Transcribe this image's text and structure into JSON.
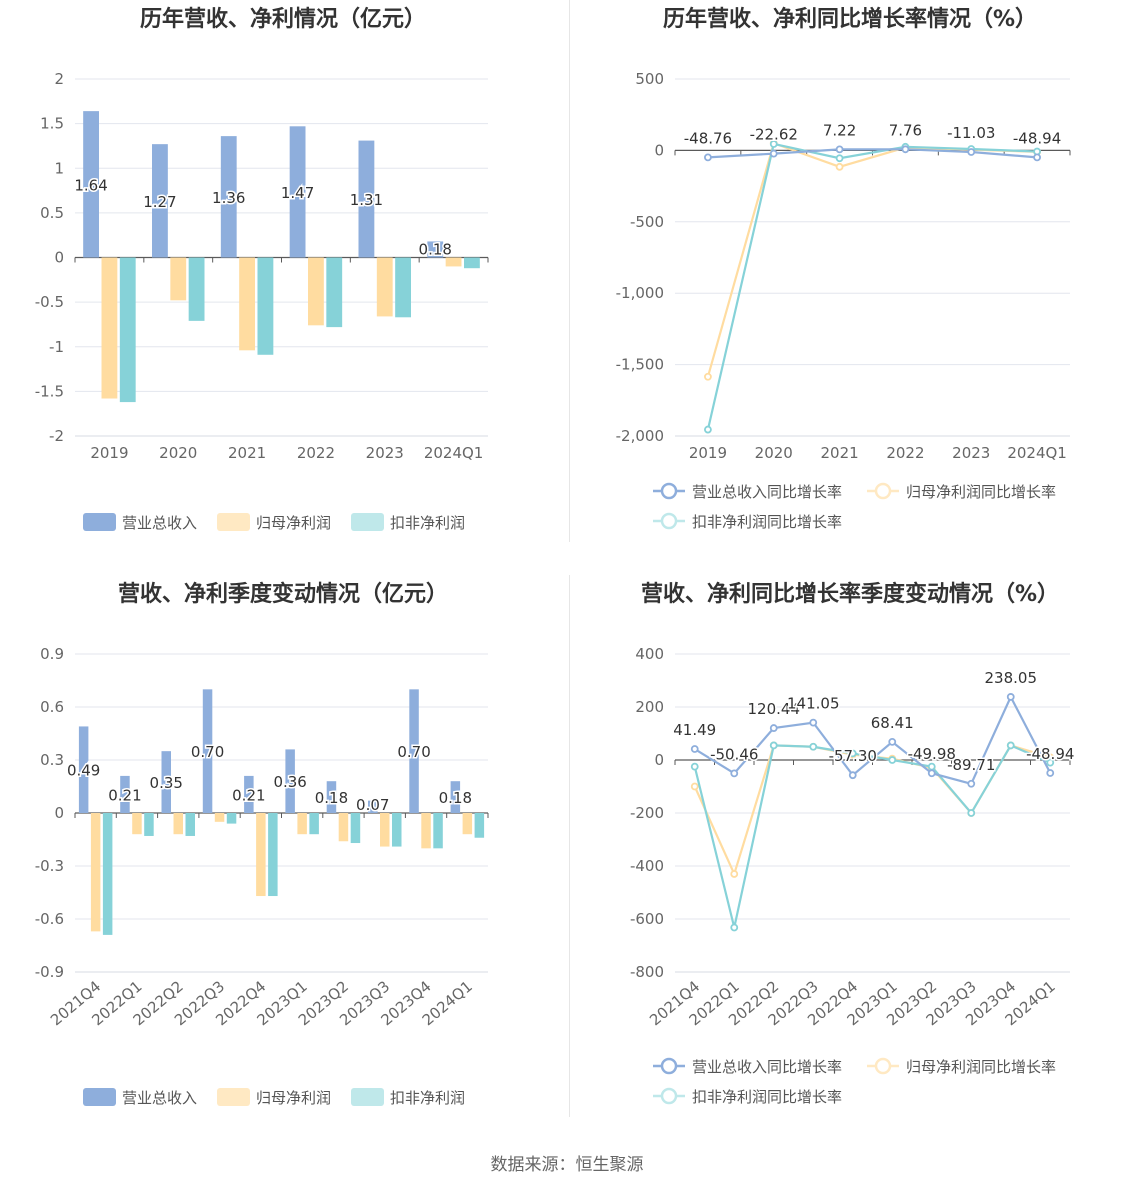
{
  "footer": "数据来源：恒生聚源",
  "colors": {
    "revenue": "#8eaedc",
    "net_profit": "#ffdca0",
    "deducted_profit": "#86d2d8",
    "grid": "#e3e6ee",
    "axis": "#5a5a5a"
  },
  "chart_data": [
    {
      "id": "p1",
      "type": "bar",
      "title": "历年营收、净利情况（亿元）",
      "categories": [
        "2019",
        "2020",
        "2021",
        "2022",
        "2023",
        "2024Q1"
      ],
      "ylim": [
        -2,
        2
      ],
      "yticks": [
        2,
        1.5,
        1,
        0.5,
        0,
        -0.5,
        -1,
        -1.5,
        -2
      ],
      "ytick_labels": [
        "2",
        "1.5",
        "1",
        "0.5",
        "0",
        "-0.5",
        "-1",
        "-1.5",
        "-2"
      ],
      "series": [
        {
          "name": "营业总收入",
          "values": [
            1.64,
            1.27,
            1.36,
            1.47,
            1.31,
            0.18
          ],
          "labels": [
            "1.64",
            "1.27",
            "1.36",
            "1.47",
            "1.31",
            "0.18"
          ]
        },
        {
          "name": "归母净利润",
          "values": [
            -1.58,
            -0.48,
            -1.04,
            -0.76,
            -0.66,
            -0.1
          ]
        },
        {
          "name": "扣非净利润",
          "values": [
            -1.62,
            -0.71,
            -1.09,
            -0.78,
            -0.67,
            -0.12
          ]
        }
      ],
      "legend": "bottom",
      "grid": true
    },
    {
      "id": "p2",
      "type": "line",
      "title": "历年营收、净利同比增长率情况（%）",
      "categories": [
        "2019",
        "2020",
        "2021",
        "2022",
        "2023",
        "2024Q1"
      ],
      "ylim": [
        -2000,
        500
      ],
      "yticks": [
        500,
        0,
        -500,
        -1000,
        -1500,
        -2000
      ],
      "ytick_labels": [
        "500",
        "0",
        "-500",
        "-1,000",
        "-1,500",
        "-2,000"
      ],
      "series": [
        {
          "name": "营业总收入同比增长率",
          "values": [
            -48.76,
            -22.62,
            7.22,
            7.76,
            -11.03,
            -48.94
          ],
          "labels": [
            "-48.76",
            "-22.62",
            "7.22",
            "7.76",
            "-11.03",
            "-48.94"
          ]
        },
        {
          "name": "归母净利润同比增长率",
          "values": [
            -1585,
            50,
            -115,
            20,
            5,
            -10
          ]
        },
        {
          "name": "扣非净利润同比增长率",
          "values": [
            -1955,
            45,
            -55,
            25,
            10,
            -8
          ]
        }
      ],
      "legend": "bottom",
      "grid": true
    },
    {
      "id": "p3",
      "type": "bar",
      "title": "营收、净利季度变动情况（亿元）",
      "categories": [
        "2021Q4",
        "2022Q1",
        "2022Q2",
        "2022Q3",
        "2022Q4",
        "2023Q1",
        "2023Q2",
        "2023Q3",
        "2023Q4",
        "2024Q1"
      ],
      "ylim": [
        -0.9,
        0.9
      ],
      "yticks": [
        0.9,
        0.6,
        0.3,
        0,
        -0.3,
        -0.6,
        -0.9
      ],
      "ytick_labels": [
        "0.9",
        "0.6",
        "0.3",
        "0",
        "-0.3",
        "-0.6",
        "-0.9"
      ],
      "series": [
        {
          "name": "营业总收入",
          "values": [
            0.49,
            0.21,
            0.35,
            0.7,
            0.21,
            0.36,
            0.18,
            0.07,
            0.7,
            0.18
          ],
          "labels": [
            "0.49",
            "0.21",
            "0.35",
            "0.70",
            "0.21",
            "0.36",
            "0.18",
            "0.07",
            "0.70",
            "0.18"
          ]
        },
        {
          "name": "归母净利润",
          "values": [
            -0.67,
            -0.12,
            -0.12,
            -0.05,
            -0.47,
            -0.12,
            -0.16,
            -0.19,
            -0.2,
            -0.12
          ]
        },
        {
          "name": "扣非净利润",
          "values": [
            -0.69,
            -0.13,
            -0.13,
            -0.06,
            -0.47,
            -0.12,
            -0.17,
            -0.19,
            -0.2,
            -0.14
          ]
        }
      ],
      "legend": "bottom",
      "grid": true
    },
    {
      "id": "p4",
      "type": "line",
      "title": "营收、净利同比增长率季度变动情况（%）",
      "categories": [
        "2021Q4",
        "2022Q1",
        "2022Q2",
        "2022Q3",
        "2022Q4",
        "2023Q1",
        "2023Q2",
        "2023Q3",
        "2023Q4",
        "2024Q1"
      ],
      "ylim": [
        -800,
        400
      ],
      "yticks": [
        400,
        200,
        0,
        -200,
        -400,
        -600,
        -800
      ],
      "ytick_labels": [
        "400",
        "200",
        "0",
        "-200",
        "-400",
        "-600",
        "-800"
      ],
      "series": [
        {
          "name": "营业总收入同比增长率",
          "values": [
            41.49,
            -50.46,
            120.44,
            141.05,
            -57.3,
            68.41,
            -49.98,
            -89.71,
            238.05,
            -48.94
          ],
          "labels": [
            "41.49",
            "-50.46",
            "120.44",
            "141.05",
            "-57.30",
            "68.41",
            "-49.98",
            "-89.71",
            "238.05",
            "-48.94"
          ]
        },
        {
          "name": "归母净利润同比增长率",
          "values": [
            -100,
            -430,
            55,
            50,
            20,
            5,
            -30,
            -200,
            55,
            10
          ]
        },
        {
          "name": "扣非净利润同比增长率",
          "values": [
            -25,
            -632,
            55,
            50,
            25,
            0,
            -25,
            -200,
            55,
            -10
          ]
        }
      ],
      "legend": "bottom",
      "grid": true
    }
  ]
}
